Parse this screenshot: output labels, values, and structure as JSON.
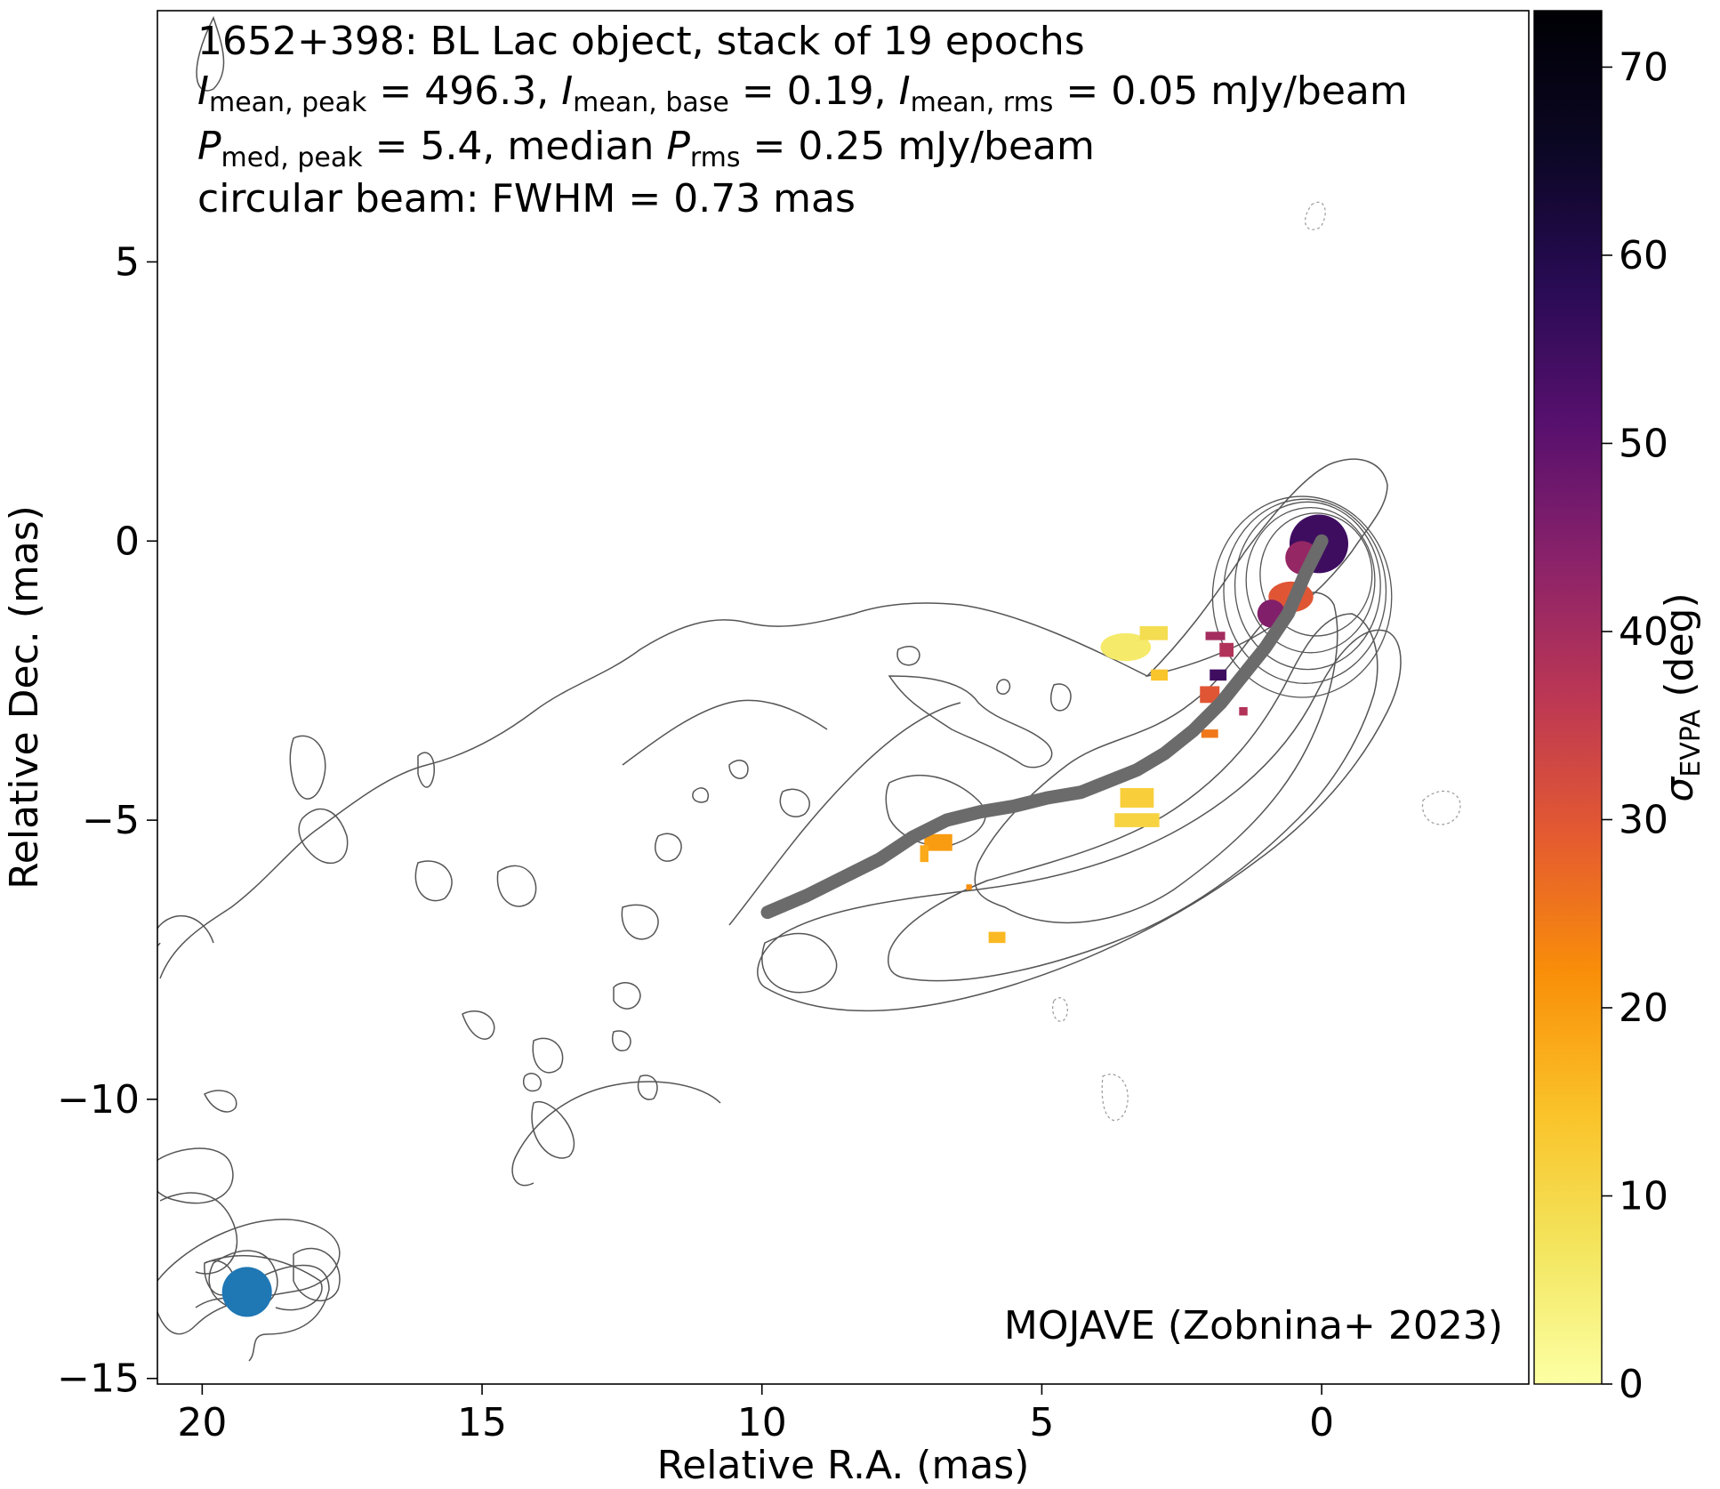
{
  "chart_data": {
    "type": "heatmap",
    "title_lines": [
      "1652+398: BL Lac object, stack of 19 epochs",
      "I_mean,peak = 496.3, I_mean,base = 0.19, I_mean,rms = 0.05 mJy/beam",
      "P_med,peak = 5.4, median P_rms = 0.25 mJy/beam",
      "circular beam: FWHM = 0.73 mas"
    ],
    "annotation": {
      "line1": "1652+398: BL Lac object, stack of 19 epochs",
      "l2_I1": "I",
      "l2_sub1": "mean, peak",
      "l2_t1": " = 496.3, ",
      "l2_I2": "I",
      "l2_sub2": "mean, base",
      "l2_t2": " = 0.19, ",
      "l2_I3": "I",
      "l2_sub3": "mean, rms",
      "l2_t3": " = 0.05 mJy/beam",
      "l3_P1": "P",
      "l3_sub1": "med, peak",
      "l3_t1": " = 5.4, median ",
      "l3_P2": "P",
      "l3_sub2": "rms",
      "l3_t2": " = 0.25 mJy/beam",
      "line4": "circular beam: FWHM = 0.73 mas"
    },
    "credit": "MOJAVE (Zobnina+ 2023)",
    "xlabel": "Relative R.A. (mas)",
    "ylabel": "Relative Dec. (mas)",
    "xlim": [
      20.8,
      -3.7
    ],
    "ylim": [
      -15.1,
      9.5
    ],
    "xticks": [
      {
        "value": 20,
        "label": "20"
      },
      {
        "value": 15,
        "label": "15"
      },
      {
        "value": 10,
        "label": "10"
      },
      {
        "value": 5,
        "label": "5"
      },
      {
        "value": 0,
        "label": "0"
      }
    ],
    "yticks": [
      {
        "value": 5,
        "label": "5"
      },
      {
        "value": 0,
        "label": "0"
      },
      {
        "value": -5,
        "label": "−5"
      },
      {
        "value": -10,
        "label": "−10"
      },
      {
        "value": -15,
        "label": "−15"
      }
    ],
    "colorbar": {
      "label_symbol": "σ",
      "label_sub": "EVPA",
      "label_unit": " (deg)",
      "range": [
        0,
        73
      ],
      "colormap": "inferno_r",
      "ticks": [
        {
          "value": 0,
          "label": "0"
        },
        {
          "value": 10,
          "label": "10"
        },
        {
          "value": 20,
          "label": "20"
        },
        {
          "value": 30,
          "label": "30"
        },
        {
          "value": 40,
          "label": "40"
        },
        {
          "value": 50,
          "label": "50"
        },
        {
          "value": 60,
          "label": "60"
        },
        {
          "value": 70,
          "label": "70"
        }
      ]
    },
    "beam": {
      "ra": 19.2,
      "dec": -13.45,
      "fwhm_mas": 0.73,
      "color": "#1f77b4"
    },
    "ridgeline": {
      "color": "#6b6b6b",
      "points": [
        [
          0.0,
          0.0
        ],
        [
          0.3,
          -0.6
        ],
        [
          0.6,
          -1.3
        ],
        [
          1.0,
          -1.9
        ],
        [
          1.4,
          -2.4
        ],
        [
          1.8,
          -2.9
        ],
        [
          2.3,
          -3.4
        ],
        [
          2.8,
          -3.8
        ],
        [
          3.3,
          -4.1
        ],
        [
          3.8,
          -4.3
        ],
        [
          4.3,
          -4.5
        ],
        [
          4.9,
          -4.6
        ],
        [
          5.5,
          -4.75
        ],
        [
          6.1,
          -4.85
        ],
        [
          6.7,
          -5.0
        ],
        [
          7.3,
          -5.3
        ],
        [
          7.9,
          -5.7
        ],
        [
          8.5,
          -6.0
        ],
        [
          9.2,
          -6.35
        ],
        [
          9.9,
          -6.65
        ]
      ]
    },
    "evpa_patches": [
      {
        "ra": 0.05,
        "dec": -0.05,
        "w": 1.05,
        "h": 1.05,
        "value": 55,
        "shape": "disk"
      },
      {
        "ra": 0.35,
        "dec": -0.3,
        "w": 0.6,
        "h": 0.6,
        "value": 42,
        "shape": "disk"
      },
      {
        "ra": 0.55,
        "dec": -1.0,
        "w": 0.8,
        "h": 0.55,
        "value": 30,
        "shape": "disk"
      },
      {
        "ra": 0.9,
        "dec": -1.3,
        "w": 0.5,
        "h": 0.5,
        "value": 45,
        "shape": "disk"
      },
      {
        "ra": 1.9,
        "dec": -1.7,
        "w": 0.35,
        "h": 0.15,
        "value": 40,
        "shape": "rect"
      },
      {
        "ra": 1.7,
        "dec": -1.95,
        "w": 0.25,
        "h": 0.25,
        "value": 38,
        "shape": "rect"
      },
      {
        "ra": 1.85,
        "dec": -2.4,
        "w": 0.3,
        "h": 0.2,
        "value": 55,
        "shape": "rect"
      },
      {
        "ra": 2.0,
        "dec": -2.75,
        "w": 0.35,
        "h": 0.3,
        "value": 30,
        "shape": "rect"
      },
      {
        "ra": 1.4,
        "dec": -3.05,
        "w": 0.15,
        "h": 0.15,
        "value": 38,
        "shape": "rect"
      },
      {
        "ra": 2.0,
        "dec": -3.45,
        "w": 0.3,
        "h": 0.15,
        "value": 25,
        "shape": "rect"
      },
      {
        "ra": 2.9,
        "dec": -2.4,
        "w": 0.3,
        "h": 0.2,
        "value": 14,
        "shape": "rect"
      },
      {
        "ra": 3.5,
        "dec": -1.9,
        "w": 0.9,
        "h": 0.5,
        "value": 6,
        "shape": "disk"
      },
      {
        "ra": 3.0,
        "dec": -1.65,
        "w": 0.5,
        "h": 0.25,
        "value": 9,
        "shape": "rect"
      },
      {
        "ra": 3.3,
        "dec": -4.6,
        "w": 0.6,
        "h": 0.35,
        "value": 12,
        "shape": "rect"
      },
      {
        "ra": 3.3,
        "dec": -5.0,
        "w": 0.8,
        "h": 0.25,
        "value": 11,
        "shape": "rect"
      },
      {
        "ra": 6.85,
        "dec": -5.4,
        "w": 0.5,
        "h": 0.3,
        "value": 20,
        "shape": "rect"
      },
      {
        "ra": 7.1,
        "dec": -5.6,
        "w": 0.15,
        "h": 0.3,
        "value": 18,
        "shape": "rect"
      },
      {
        "ra": 6.3,
        "dec": -6.2,
        "w": 0.1,
        "h": 0.1,
        "value": 22,
        "shape": "rect"
      },
      {
        "ra": 5.8,
        "dec": -7.1,
        "w": 0.3,
        "h": 0.2,
        "value": 16,
        "shape": "rect"
      }
    ],
    "contours": {
      "color": "#555555",
      "jet_levels": [
        {
          "ra": 0.1,
          "dec": -0.6,
          "rx": 1.0,
          "ry": 1.1
        },
        {
          "ra": 0.2,
          "dec": -0.7,
          "rx": 1.15,
          "ry": 1.3
        },
        {
          "ra": 0.25,
          "dec": -0.8,
          "rx": 1.3,
          "ry": 1.5
        },
        {
          "ra": 0.3,
          "dec": -0.9,
          "rx": 1.45,
          "ry": 1.65
        },
        {
          "ra": 0.35,
          "dec": -1.0,
          "rx": 1.6,
          "ry": 1.8
        }
      ]
    }
  }
}
